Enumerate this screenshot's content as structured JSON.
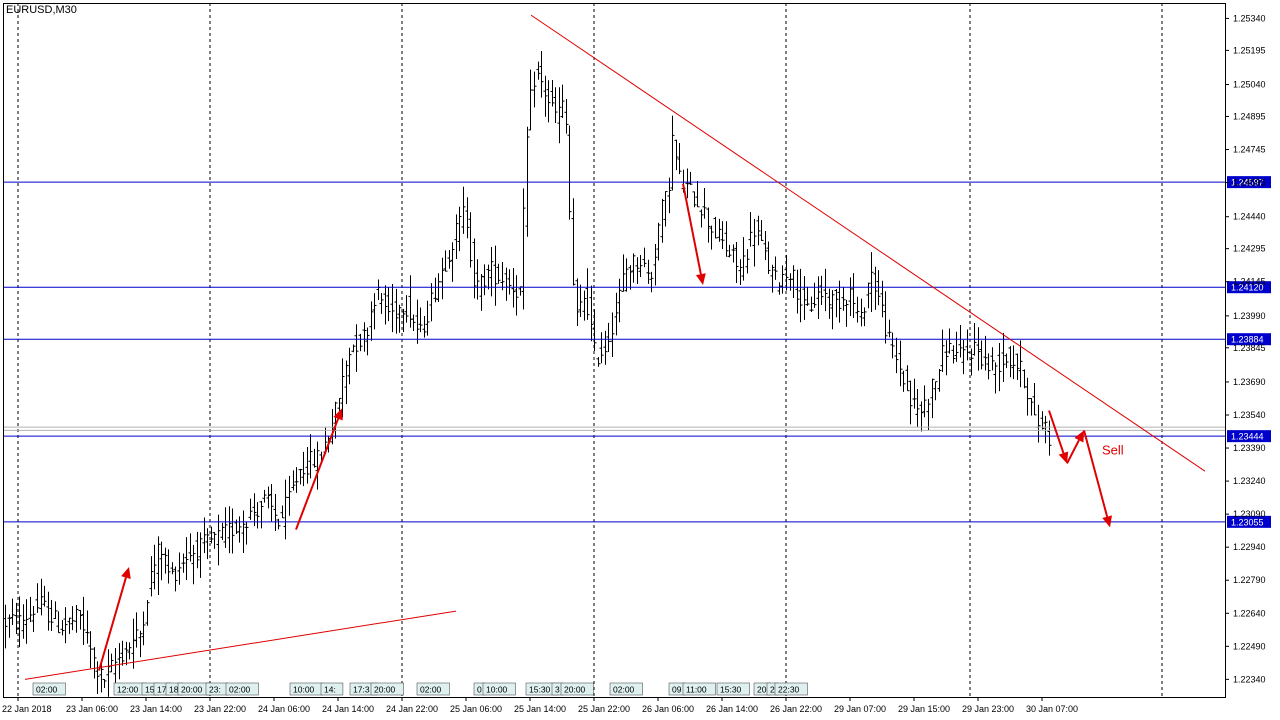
{
  "chart_data": {
    "type": "candlestick",
    "title": "EURUSD,M30",
    "ylim": [
      1.2226,
      1.2541
    ],
    "y_ticks": [
      "1.25340",
      "1.25195",
      "1.25040",
      "1.24895",
      "1.24745",
      "1.24595",
      "1.24440",
      "1.24295",
      "1.24145",
      "1.23990",
      "1.23845",
      "1.23690",
      "1.23540",
      "1.23390",
      "1.23240",
      "1.23090",
      "1.22940",
      "1.22790",
      "1.22640",
      "1.22490",
      "1.22340"
    ],
    "x_labels": [
      "22 Jan 2018",
      "23 Jan 06:00",
      "23 Jan 14:00",
      "23 Jan 22:00",
      "24 Jan 06:00",
      "24 Jan 14:00",
      "24 Jan 22:00",
      "25 Jan 06:00",
      "25 Jan 14:00",
      "25 Jan 22:00",
      "26 Jan 06:00",
      "26 Jan 14:00",
      "26 Jan 22:00",
      "29 Jan 07:00",
      "29 Jan 15:00",
      "29 Jan 23:00",
      "30 Jan 07:00"
    ],
    "horizontal_levels": [
      {
        "value": 1.24597,
        "label": "1.24597",
        "color": "#0000cc"
      },
      {
        "value": 1.2412,
        "label": "1.24120",
        "color": "#0000cc"
      },
      {
        "value": 1.23884,
        "label": "1.23884",
        "color": "#0000cc"
      },
      {
        "value": 1.23444,
        "label": "1.23444",
        "color": "#0000cc"
      },
      {
        "value": 1.23055,
        "label": "1.23055",
        "color": "#0000cc"
      }
    ],
    "bid_levels": [
      1.2347,
      1.23485
    ],
    "trendlines": [
      {
        "from": [
          25,
          1.2234
        ],
        "to": [
          456,
          1.2265
        ],
        "color": "#e00000"
      },
      {
        "from": [
          531,
          1.25355
        ],
        "to": [
          1205,
          1.23285
        ],
        "color": "#e00000"
      }
    ],
    "arrows": [
      {
        "from": [
          99,
          1.2238
        ],
        "to": [
          129,
          1.2285
        ]
      },
      {
        "from": [
          296,
          1.2302
        ],
        "to": [
          342,
          1.2357
        ]
      },
      {
        "from": [
          683,
          1.2459
        ],
        "to": [
          703,
          1.2413
        ]
      },
      {
        "from": [
          1049,
          1.2356
        ],
        "to": [
          1067,
          1.2332
        ]
      },
      {
        "from": [
          1067,
          1.2332
        ],
        "to": [
          1084,
          1.2347
        ]
      },
      {
        "from": [
          1084,
          1.2347
        ],
        "to": [
          1110,
          1.2303
        ]
      }
    ],
    "annotations": [
      {
        "text": "Sell",
        "x": 1102,
        "y": 1.2336,
        "color": "#e00000"
      }
    ],
    "event_labels": [
      "02:00",
      "12:00",
      "15",
      "17",
      "18",
      "20:00",
      "23:",
      "02:00",
      "10:00",
      "14:",
      "17:3",
      "20:00",
      "02:00",
      "0",
      "10:00",
      "15:30",
      "3",
      "20:00",
      "02:00",
      "09",
      "11:00",
      "15:30",
      "20",
      "2",
      "22:30"
    ],
    "colors": {
      "bars": "#000000",
      "grid": "#000000",
      "levels": "#0000cc",
      "trend": "#e00000",
      "label_bg": "#0000cc"
    }
  }
}
